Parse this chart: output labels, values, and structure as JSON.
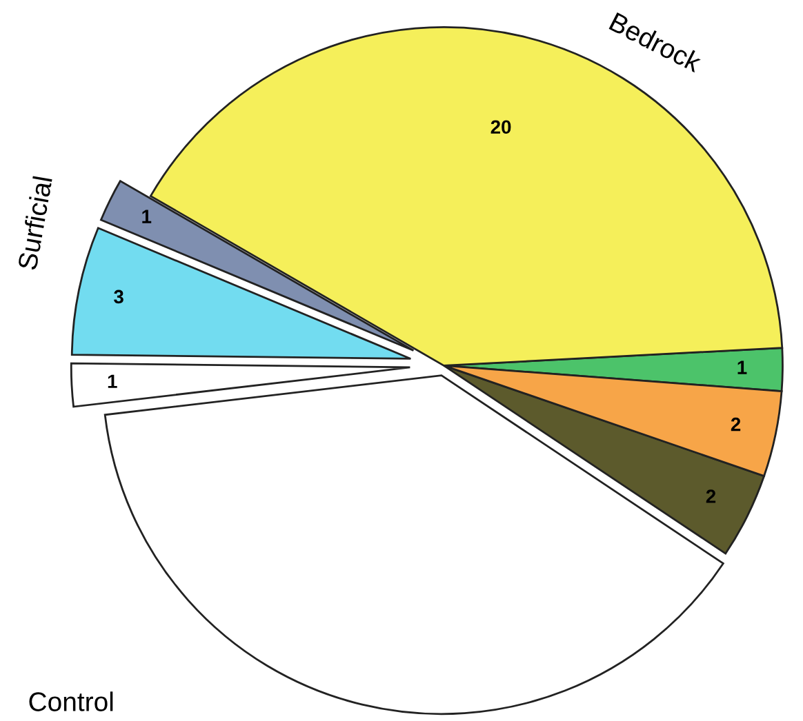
{
  "chart_data": {
    "type": "pie",
    "categories": [
      null,
      null,
      null,
      null,
      null,
      null,
      null,
      null
    ],
    "values": [
      1,
      20,
      1,
      3,
      1,
      19,
      2,
      2
    ],
    "colors": [
      "#4cc36a",
      "#f5ef5a",
      "#7f8fb0",
      "#72dcf0",
      "#ffffff",
      "#ffffff",
      "#5c5a2c",
      "#f7a548"
    ],
    "value_labels": [
      "1",
      "20",
      "1",
      "3",
      "1",
      null,
      "2",
      "2"
    ],
    "annotations": [
      "Bedrock",
      "Surficial",
      "Control"
    ]
  }
}
